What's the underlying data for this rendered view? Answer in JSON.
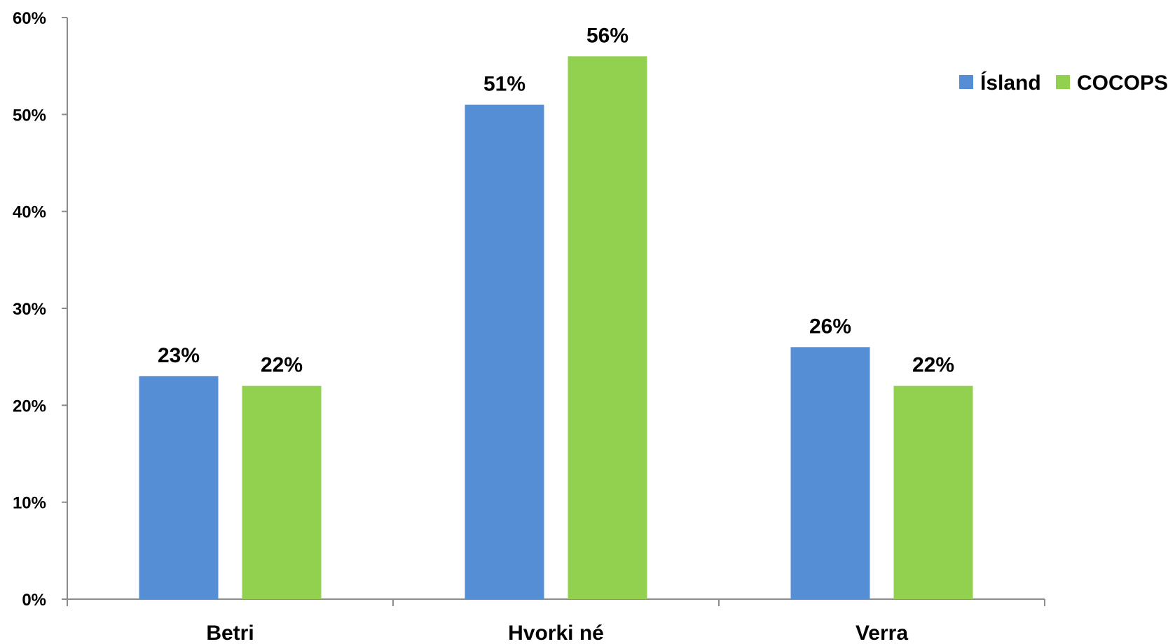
{
  "chart_data": {
    "type": "bar",
    "categories": [
      "Betri",
      "Hvorki né",
      "Verra"
    ],
    "series": [
      {
        "name": "Ísland",
        "values": [
          23,
          51,
          26
        ],
        "labels": [
          "23%",
          "51%",
          "26%"
        ],
        "color": "#558ED5"
      },
      {
        "name": "COCOPS",
        "values": [
          22,
          56,
          22
        ],
        "labels": [
          "22%",
          "56%",
          "22%"
        ],
        "color": "#92D050"
      }
    ],
    "ylim": [
      0,
      60
    ],
    "yticks": [
      0,
      10,
      20,
      30,
      40,
      50,
      60
    ],
    "ytick_labels": [
      "0%",
      "10%",
      "20%",
      "30%",
      "40%",
      "50%",
      "60%"
    ],
    "grid": false,
    "legend": "top-right"
  }
}
